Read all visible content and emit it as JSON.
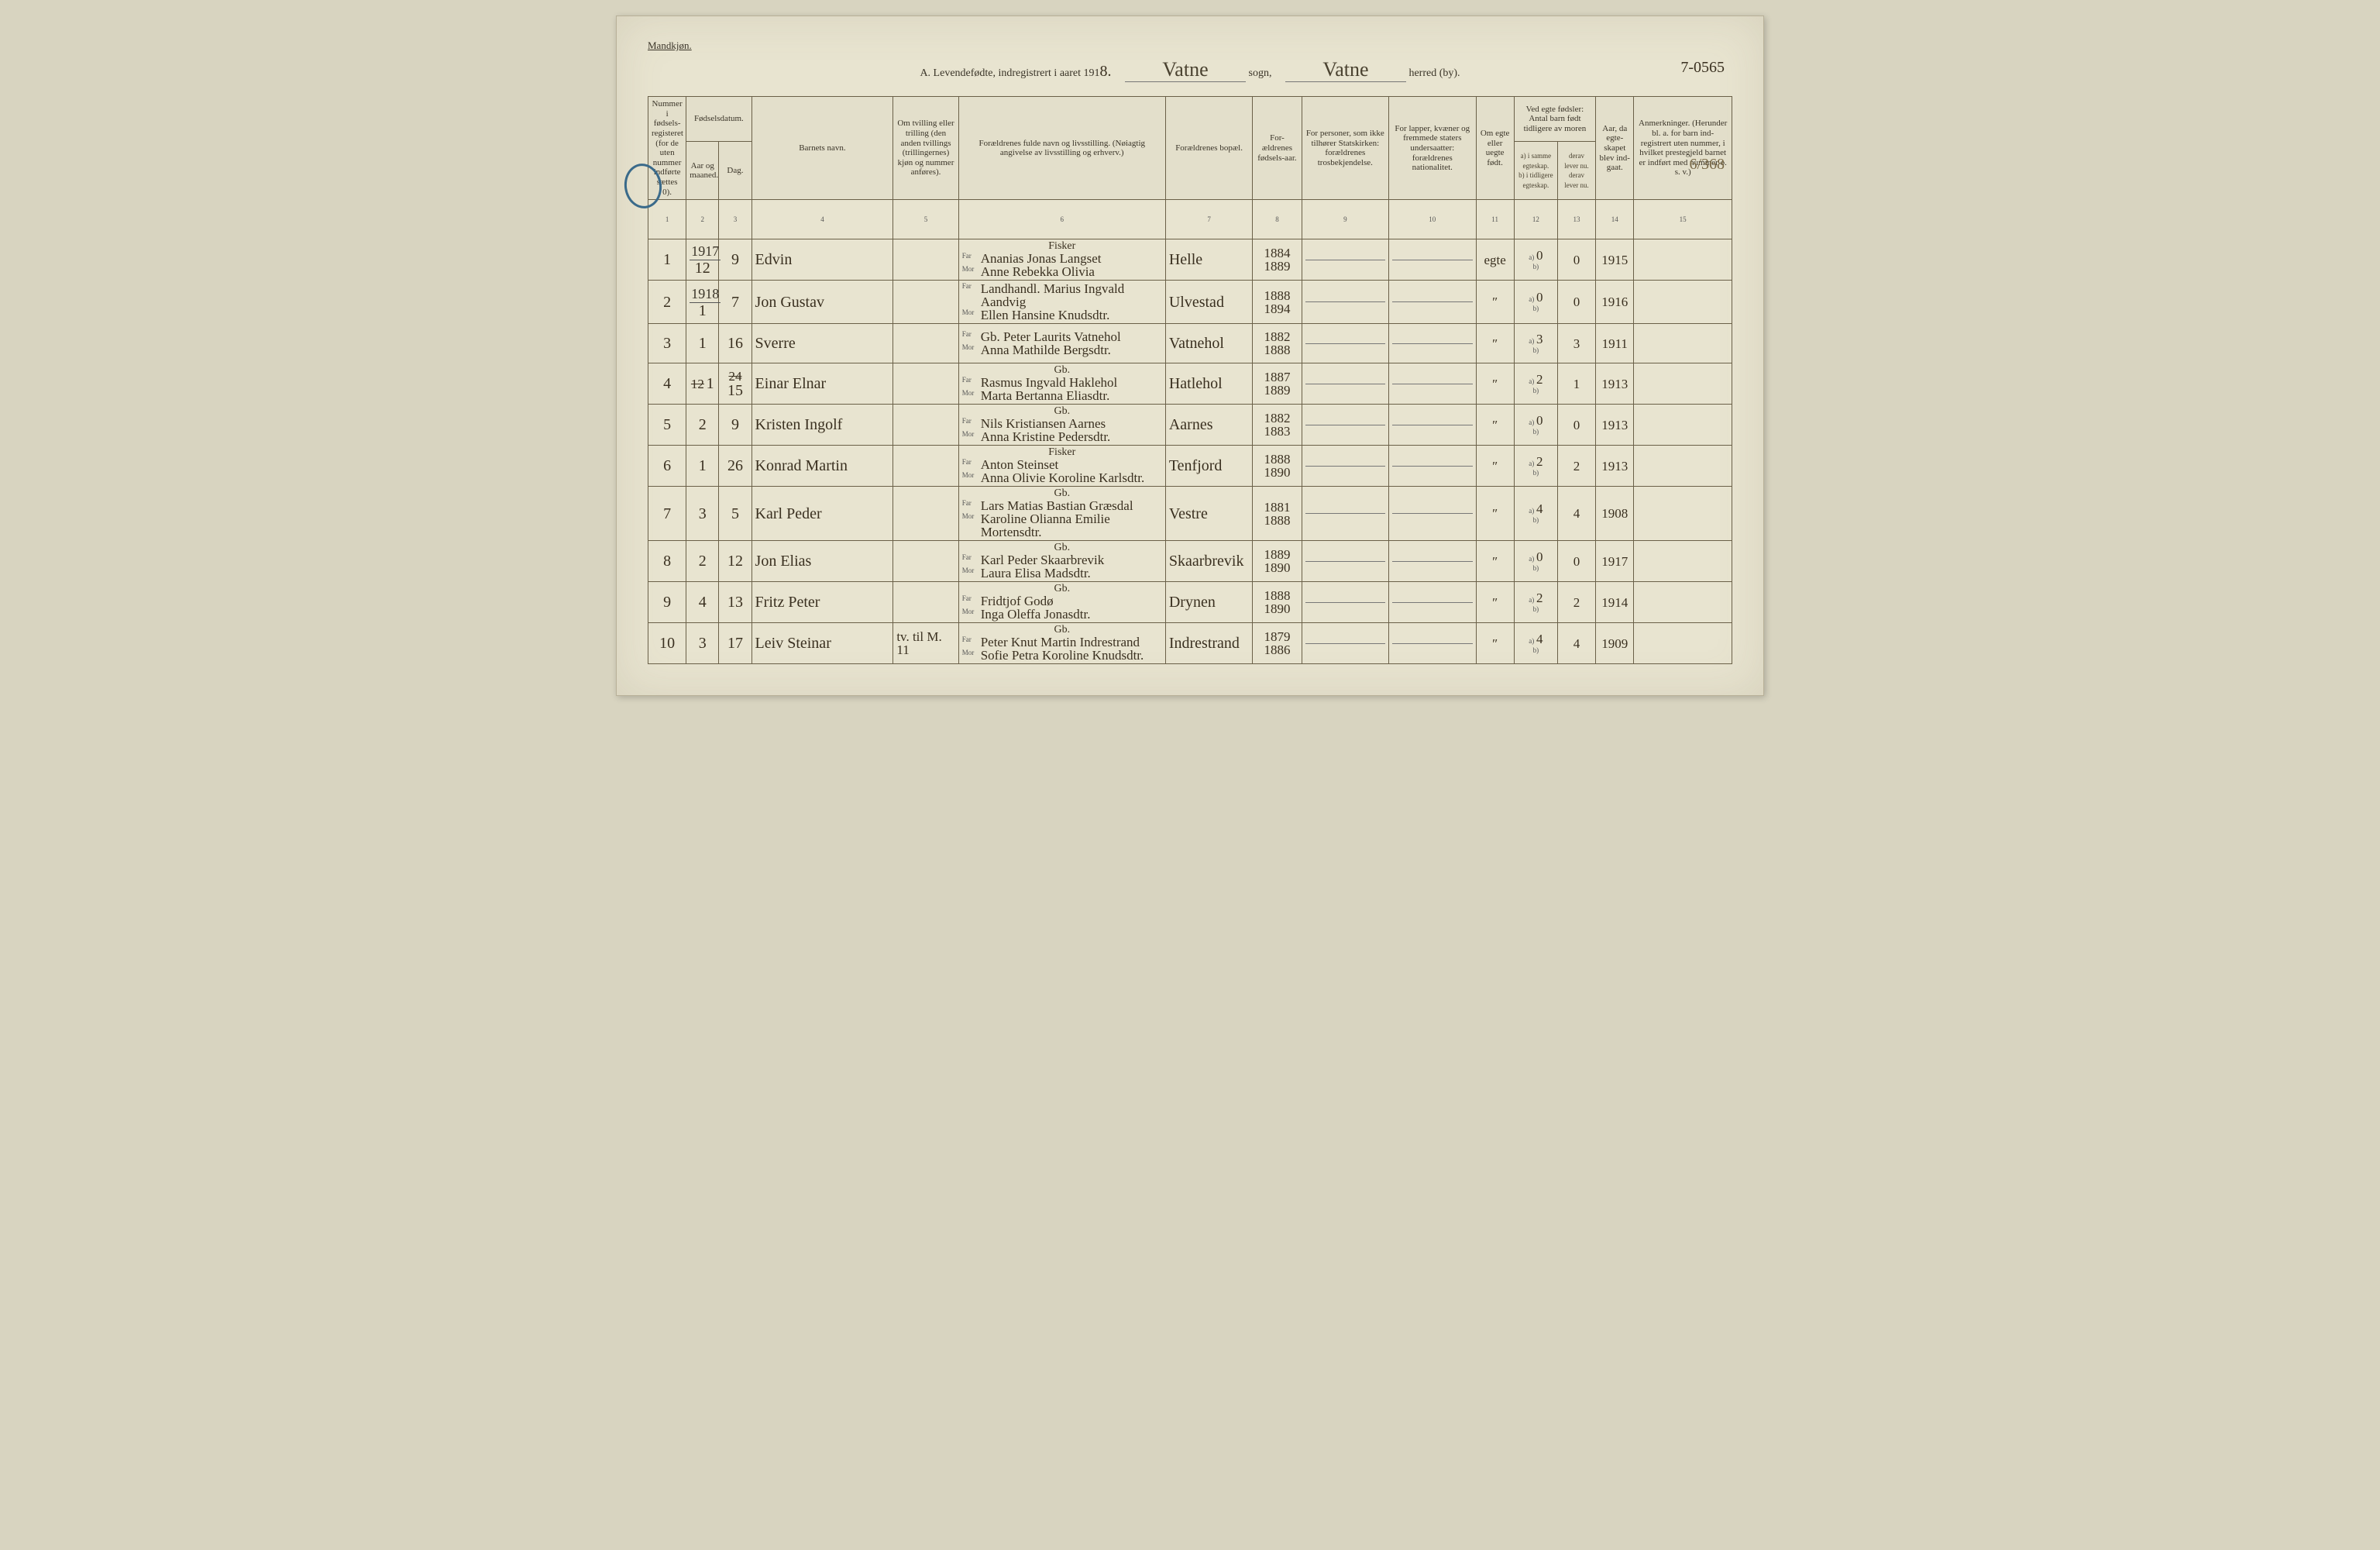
{
  "top_label": "Mandkjøn.",
  "title_prefix": "A.  Levendefødte, indregistrert i aaret 191",
  "title_year_suffix": "8.",
  "sogn_label": "sogn,",
  "sogn_value": "Vatne",
  "herred_label": "herred (by).",
  "herred_value": "Vatne",
  "corner_note": "7-0565",
  "side_annotation": "6/368",
  "columns": {
    "c1": "Nummer i fødsels-registeret (for de uten nummer indførte sættes 0).",
    "c2_top": "Fødselsdatum.",
    "c2a": "Aar og maaned.",
    "c2b": "Dag.",
    "c4": "Barnets navn.",
    "c5": "Om tvilling eller trilling (den anden tvillings (trillingernes) kjøn og nummer anføres).",
    "c6": "Forældrenes fulde navn og livsstilling.\n(Nøiagtig angivelse av livsstilling og erhverv.)",
    "c7": "Forældrenes bopæl.",
    "c8": "For-ældrenes fødsels-aar.",
    "c9": "For personer, som ikke tilhører Statskirken:\nforældrenes trosbekjendelse.",
    "c10": "For lapper, kvæner og fremmede staters undersaatter:\nforældrenes nationalitet.",
    "c11": "Om egte eller uegte født.",
    "c12_top": "Ved egte fødsler:\nAntal barn født tidligere av moren",
    "c12a": "a) i samme egteskap.",
    "c12b": "b) i tidligere egteskap.",
    "c13a": "derav lever nu.",
    "c13b": "derav lever nu.",
    "c14": "Aar, da egte-skapet blev ind-gaat.",
    "c15": "Anmerkninger.\n(Herunder bl. a. for barn ind-registrert uten nummer, i hvilket prestegjeld barnet er indført med nummer o. s. v.)"
  },
  "colnums": [
    "1",
    "2",
    "3",
    "4",
    "5",
    "6",
    "7",
    "8",
    "9",
    "10",
    "11",
    "12",
    "13",
    "14",
    "15"
  ],
  "far_label": "Far",
  "mor_label": "Mor",
  "a_label": "a)",
  "b_label": "b)",
  "rows": [
    {
      "num": "1",
      "year": "1917",
      "month": "12",
      "day": "9",
      "name": "Edvin",
      "occ": "Fisker",
      "far": "Ananias Jonas Langset",
      "mor": "Anne Rebekka Olivia",
      "residence": "Helle",
      "fy": "1884",
      "my": "1889",
      "egte": "egte",
      "a": "0",
      "alive": "0",
      "married": "1915",
      "note": ""
    },
    {
      "num": "2",
      "year": "1918",
      "month": "1",
      "day": "7",
      "name": "Jon Gustav",
      "occ": "",
      "far": "Landhandl. Marius Ingvald Aandvig",
      "mor": "Ellen Hansine Knudsdtr.",
      "residence": "Ulvestad",
      "fy": "1888",
      "my": "1894",
      "egte": "″",
      "a": "0",
      "alive": "0",
      "married": "1916",
      "note": ""
    },
    {
      "num": "3",
      "year": "",
      "month": "1",
      "day": "16",
      "name": "Sverre",
      "occ": "",
      "far": "Gb. Peter Laurits Vatnehol",
      "mor": "Anna Mathilde Bergsdtr.",
      "residence": "Vatnehol",
      "fy": "1882",
      "my": "1888",
      "egte": "″",
      "a": "3",
      "alive": "3",
      "married": "1911",
      "note": ""
    },
    {
      "num": "4",
      "year": "",
      "month": "1",
      "day": "15",
      "name": "Einar Elnar",
      "occ": "Gb.",
      "far": "Rasmus Ingvald Haklehol",
      "mor": "Marta Bertanna Eliasdtr.",
      "residence": "Hatlehol",
      "fy": "1887",
      "my": "1889",
      "egte": "″",
      "a": "2",
      "alive": "1",
      "married": "1913",
      "note": "",
      "strike_month": "12",
      "strike_day": "24"
    },
    {
      "num": "5",
      "year": "",
      "month": "2",
      "day": "9",
      "name": "Kristen Ingolf",
      "occ": "Gb.",
      "far": "Nils Kristiansen Aarnes",
      "mor": "Anna Kristine Pedersdtr.",
      "residence": "Aarnes",
      "fy": "1882",
      "my": "1883",
      "egte": "″",
      "a": "0",
      "alive": "0",
      "married": "1913",
      "note": ""
    },
    {
      "num": "6",
      "year": "",
      "month": "1",
      "day": "26",
      "name": "Konrad Martin",
      "occ": "Fisker",
      "far": "Anton Steinset",
      "mor": "Anna Olivie Koroline Karlsdtr.",
      "residence": "Tenfjord",
      "fy": "1888",
      "my": "1890",
      "egte": "″",
      "a": "2",
      "alive": "2",
      "married": "1913",
      "note": ""
    },
    {
      "num": "7",
      "year": "",
      "month": "3",
      "day": "5",
      "name": "Karl Peder",
      "occ": "Gb.",
      "far": "Lars Matias Bastian Græsdal",
      "mor": "Karoline Olianna Emilie Mortensdtr.",
      "residence": "Vestre",
      "fy": "1881",
      "my": "1888",
      "egte": "″",
      "a": "4",
      "alive": "4",
      "married": "1908",
      "note": ""
    },
    {
      "num": "8",
      "year": "",
      "month": "2",
      "day": "12",
      "name": "Jon Elias",
      "occ": "Gb.",
      "far": "Karl Peder Skaarbrevik",
      "mor": "Laura Elisa Madsdtr.",
      "residence": "Skaarbrevik",
      "fy": "1889",
      "my": "1890",
      "egte": "″",
      "a": "0",
      "alive": "0",
      "married": "1917",
      "note": ""
    },
    {
      "num": "9",
      "year": "",
      "month": "4",
      "day": "13",
      "name": "Fritz Peter",
      "occ": "Gb.",
      "far": "Fridtjof Godø",
      "mor": "Inga Oleffa Jonasdtr.",
      "residence": "Drynen",
      "fy": "1888",
      "my": "1890",
      "egte": "″",
      "a": "2",
      "alive": "2",
      "married": "1914",
      "note": ""
    },
    {
      "num": "10",
      "year": "",
      "month": "3",
      "day": "17",
      "name": "Leiv Steinar",
      "occ": "Gb.",
      "far": "Peter Knut Martin Indrestrand",
      "mor": "Sofie Petra Koroline Knudsdtr.",
      "residence": "Indrestrand",
      "fy": "1879",
      "my": "1886",
      "egte": "″",
      "a": "4",
      "alive": "4",
      "married": "1909",
      "note": "",
      "twin": "tv. til M. 11"
    }
  ]
}
